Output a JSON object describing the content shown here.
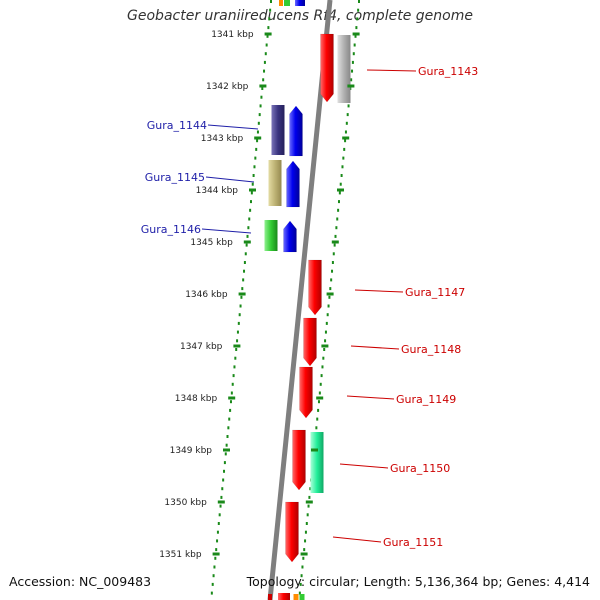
{
  "title": "Geobacter uraniireducens Rf4, complete genome",
  "footer": {
    "accession": "Accession: NC_009483",
    "summary": "Topology: circular; Length: 5,136,364 bp; Genes: 4,414"
  },
  "colors": {
    "backbone": "#7f7f7f",
    "tick_dots": "#1a8a1a",
    "left_labels": "#1f1fa8",
    "right_labels": "#cc0000"
  },
  "scale": {
    "unit": "kbp",
    "labels": [
      "1341 kbp",
      "1342 kbp",
      "1343 kbp",
      "1344 kbp",
      "1345 kbp",
      "1346 kbp",
      "1347 kbp",
      "1348 kbp",
      "1349 kbp",
      "1350 kbp",
      "1351 kbp"
    ]
  },
  "genes": {
    "left": [
      {
        "label": "Gura_1144",
        "color": "blue"
      },
      {
        "label": "Gura_1145",
        "color": "blue"
      },
      {
        "label": "Gura_1146",
        "color": "blue"
      }
    ],
    "right": [
      {
        "label": "Gura_1143",
        "color": "red"
      },
      {
        "label": "Gura_1147",
        "color": "red"
      },
      {
        "label": "Gura_1148",
        "color": "red"
      },
      {
        "label": "Gura_1149",
        "color": "red"
      },
      {
        "label": "Gura_1150",
        "color": "red"
      },
      {
        "label": "Gura_1151",
        "color": "red"
      }
    ]
  }
}
